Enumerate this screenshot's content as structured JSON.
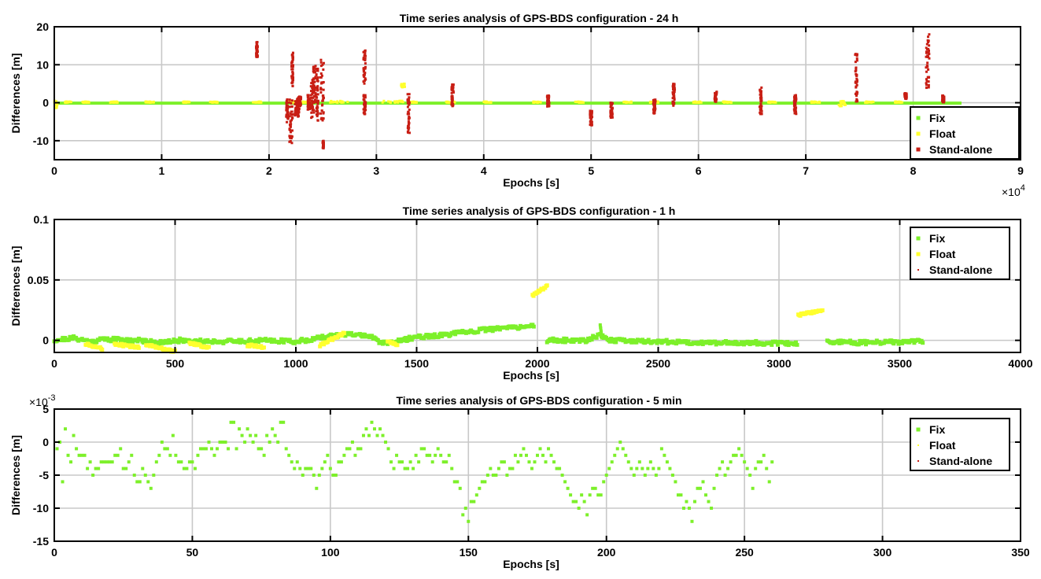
{
  "colors": {
    "fix": "#7df02a",
    "float": "#ffff2e",
    "standalone": "#c81e14",
    "grid": "#c8c8c8"
  },
  "chart_data": [
    {
      "type": "scatter",
      "title": "Time series analysis of GPS-BDS configuration - 24 h",
      "xlabel": "Epochs [s]",
      "ylabel": "Differences [m]",
      "xlim": [
        0,
        90000
      ],
      "ylim": [
        -15,
        20
      ],
      "xticks": [
        0,
        10000,
        20000,
        30000,
        40000,
        50000,
        60000,
        70000,
        80000,
        90000
      ],
      "xtick_labels": [
        "0",
        "1",
        "2",
        "3",
        "4",
        "5",
        "6",
        "7",
        "8",
        "9"
      ],
      "x_multiplier": [
        "×10",
        "4"
      ],
      "yticks": [
        -10,
        0,
        10,
        20
      ],
      "ytick_labels": [
        "-10",
        "0",
        "10",
        "20"
      ],
      "ytick_multiplier": null,
      "grid": true,
      "legend_position": "bottom-right",
      "series": [
        {
          "name": "Fix",
          "segments": [
            [
              0,
              84500,
              0,
              0.2
            ]
          ]
        },
        {
          "name": "Float",
          "segments": [
            [
              0,
              300,
              -1.5,
              0.5
            ],
            [
              900,
              1600,
              0,
              0.3
            ],
            [
              2600,
              3300,
              0,
              0.3
            ],
            [
              5200,
              5900,
              0,
              0.3
            ],
            [
              8500,
              9300,
              0,
              0.3
            ],
            [
              12000,
              12600,
              0,
              0.3
            ],
            [
              14500,
              15200,
              0,
              0.3
            ],
            [
              18500,
              19300,
              0,
              0.3
            ],
            [
              21800,
              22600,
              0,
              0.5
            ],
            [
              23100,
              23600,
              0,
              0.3
            ],
            [
              25600,
              27400,
              0,
              0.5
            ],
            [
              30500,
              32500,
              0,
              0.5
            ],
            [
              32300,
              32700,
              4,
              5
            ],
            [
              33000,
              33800,
              0,
              0.3
            ],
            [
              36500,
              37300,
              0,
              0.3
            ],
            [
              40000,
              40700,
              0,
              0.3
            ],
            [
              44600,
              45300,
              0,
              0.3
            ],
            [
              48500,
              49300,
              0,
              0.3
            ],
            [
              53000,
              53800,
              0,
              0.3
            ],
            [
              55500,
              56300,
              0,
              0.3
            ],
            [
              59500,
              60300,
              0,
              0.3
            ],
            [
              62300,
              63100,
              0,
              0.3
            ],
            [
              66500,
              67300,
              0,
              0.3
            ],
            [
              70500,
              71300,
              0,
              0.3
            ],
            [
              73000,
              73700,
              -1,
              0.5
            ],
            [
              75500,
              76300,
              0,
              0.3
            ],
            [
              78300,
              79000,
              0,
              0.3
            ]
          ]
        },
        {
          "name": "Stand-alone",
          "segments": [
            [
              18800,
              18950,
              12,
              16
            ],
            [
              21600,
              21800,
              -6,
              1
            ],
            [
              21900,
              22200,
              -11,
              1
            ],
            [
              22100,
              22250,
              4,
              14
            ],
            [
              22400,
              22800,
              -4,
              1
            ],
            [
              22600,
              23000,
              -2,
              2
            ],
            [
              23600,
              23800,
              -2,
              2
            ],
            [
              23900,
              24200,
              -4,
              6
            ],
            [
              24100,
              24400,
              0,
              10
            ],
            [
              24400,
              24600,
              -5,
              9
            ],
            [
              24800,
              25100,
              -5,
              12
            ],
            [
              25000,
              25100,
              -12,
              -10
            ],
            [
              28800,
              29000,
              5,
              14
            ],
            [
              28800,
              29000,
              -3,
              2
            ],
            [
              32900,
              33100,
              -8,
              3
            ],
            [
              37000,
              37200,
              -1,
              5
            ],
            [
              45900,
              46100,
              -1,
              2
            ],
            [
              49900,
              50100,
              -6,
              -2
            ],
            [
              51800,
              52000,
              -4,
              0
            ],
            [
              55800,
              56000,
              -3,
              1
            ],
            [
              57600,
              57800,
              -1,
              5
            ],
            [
              61500,
              61700,
              0,
              3
            ],
            [
              65700,
              65900,
              -3,
              4
            ],
            [
              68900,
              69100,
              -3,
              2
            ],
            [
              74600,
              74800,
              -1,
              13
            ],
            [
              79200,
              79400,
              1,
              2.5
            ],
            [
              81200,
              81500,
              3,
              18
            ],
            [
              82700,
              82900,
              0,
              2
            ]
          ]
        }
      ]
    },
    {
      "type": "scatter",
      "title": "Time series analysis of GPS-BDS configuration - 1 h",
      "xlabel": "Epochs [s]",
      "ylabel": "Differences [m]",
      "xlim": [
        0,
        4000
      ],
      "ylim": [
        -0.01,
        0.1
      ],
      "xticks": [
        0,
        500,
        1000,
        1500,
        2000,
        2500,
        3000,
        3500,
        4000
      ],
      "xtick_labels": [
        "0",
        "500",
        "1000",
        "1500",
        "2000",
        "2500",
        "3000",
        "3500",
        "4000"
      ],
      "x_multiplier": null,
      "yticks": [
        0,
        0.05,
        0.1
      ],
      "ytick_labels": [
        "0",
        "0.05",
        "0.1"
      ],
      "ytick_multiplier": null,
      "grid": true,
      "legend_position": "top-right",
      "series": [
        {
          "name": "Fix",
          "anchors": [
            [
              0,
              0
            ],
            [
              80,
              0.002
            ],
            [
              150,
              -0.001
            ],
            [
              200,
              0.001
            ],
            [
              350,
              0
            ],
            [
              450,
              -0.002
            ],
            [
              520,
              0
            ],
            [
              700,
              -0.001
            ],
            [
              900,
              0
            ],
            [
              1000,
              -0.001
            ],
            [
              1100,
              0.002
            ],
            [
              1200,
              0.005
            ],
            [
              1300,
              0.004
            ],
            [
              1350,
              -0.002
            ],
            [
              1420,
              -0.001
            ],
            [
              1500,
              0.003
            ],
            [
              1600,
              0.004
            ],
            [
              1750,
              0.008
            ],
            [
              1850,
              0.01
            ],
            [
              1990,
              0.012
            ],
            [
              2000,
              null
            ],
            [
              2040,
              0
            ],
            [
              2200,
              0
            ],
            [
              2260,
              0.005
            ],
            [
              2300,
              0
            ],
            [
              2500,
              -0.001
            ],
            [
              2700,
              -0.002
            ],
            [
              2900,
              -0.002
            ],
            [
              3080,
              -0.003
            ],
            [
              3100,
              null
            ],
            [
              3200,
              -0.001
            ],
            [
              3350,
              -0.002
            ],
            [
              3600,
              -0.001
            ]
          ],
          "spike": [
            2260,
            0.013
          ]
        },
        {
          "name": "Float",
          "clusters": [
            [
              130,
              200,
              -0.003,
              -0.007
            ],
            [
              250,
              350,
              -0.003,
              -0.006
            ],
            [
              380,
              500,
              -0.004,
              -0.009
            ],
            [
              560,
              640,
              -0.002,
              -0.006
            ],
            [
              800,
              870,
              -0.004,
              -0.006
            ],
            [
              1100,
              1200,
              -0.004,
              0.006
            ],
            [
              1380,
              1420,
              -0.001,
              -0.004
            ],
            [
              1980,
              2040,
              0.037,
              0.045
            ],
            [
              3080,
              3180,
              0.021,
              0.025
            ]
          ]
        },
        {
          "name": "Stand-alone",
          "clusters": []
        }
      ]
    },
    {
      "type": "scatter",
      "title": "Time series analysis of GPS-BDS configuration - 5 min",
      "xlabel": "Epochs [s]",
      "ylabel": "Differences [m]",
      "xlim": [
        0,
        350
      ],
      "ylim": [
        -15,
        5
      ],
      "xticks": [
        0,
        50,
        100,
        150,
        200,
        250,
        300,
        350
      ],
      "xtick_labels": [
        "0",
        "50",
        "100",
        "150",
        "200",
        "250",
        "300",
        "350"
      ],
      "x_multiplier": null,
      "yticks": [
        -15,
        -10,
        -5,
        0,
        5
      ],
      "ytick_labels": [
        "-15",
        "-10",
        "-5",
        "0",
        "5"
      ],
      "ytick_multiplier": [
        "×10",
        "-3"
      ],
      "grid": true,
      "legend_position": "top-right",
      "series": [
        {
          "name": "Fix",
          "values": [
            -1,
            0,
            -6,
            2,
            -2,
            -3,
            1,
            -1,
            -2,
            -2,
            -2,
            -4,
            -3,
            -5,
            -4,
            -4,
            -3,
            -3,
            -3,
            -3,
            -3,
            -2,
            -2,
            -1,
            -4,
            -4,
            -3,
            -2,
            -5,
            -6,
            -6,
            -4,
            -5,
            -6,
            -7,
            -5,
            -3,
            -2,
            0,
            -1,
            -1,
            -2,
            1,
            -2,
            -3,
            -3,
            -4,
            -4,
            -3,
            -3,
            -4,
            -2,
            -1,
            -1,
            -1,
            0,
            -1,
            -2,
            -1,
            0,
            0,
            0,
            -1,
            3,
            3,
            -1,
            2,
            1,
            0,
            2,
            1,
            0,
            1,
            -1,
            -1,
            -2,
            1,
            0,
            2,
            1,
            0,
            3,
            3,
            -1,
            -2,
            -3,
            -4,
            -3,
            -4,
            -5,
            -4,
            -4,
            -4,
            -5,
            -7,
            -5,
            -4,
            -3,
            -2,
            -4,
            -5,
            -5,
            -3,
            -3,
            -2,
            -1,
            -1,
            0,
            -2,
            -1,
            -1,
            1,
            2,
            1,
            3,
            2,
            1,
            2,
            1,
            0,
            -1,
            -3,
            -4,
            -2,
            -3,
            -3,
            -4,
            -4,
            -3,
            -4,
            -2,
            -3,
            -1,
            -1,
            -2,
            -2,
            -3,
            -2,
            -1,
            -2,
            -3,
            -3,
            -2,
            -4,
            -6,
            -6,
            -7,
            -11,
            -10,
            -12,
            -9,
            -9,
            -8,
            -7,
            -6,
            -6,
            -5,
            -4,
            -5,
            -5,
            -4,
            -3,
            -3,
            -5,
            -4,
            -4,
            -2,
            -3,
            -2,
            -1,
            -2,
            -3,
            -4,
            -3,
            -2,
            -1,
            -2,
            -3,
            -1,
            -2,
            -3,
            -4,
            -4,
            -5,
            -6,
            -7,
            -8,
            -9,
            -9,
            -10,
            -8,
            -9,
            -11,
            -8,
            -7,
            -7,
            -8,
            -8,
            -6,
            -5,
            -4,
            -3,
            -2,
            -1,
            0,
            -1,
            -2,
            -3,
            -4,
            -5,
            -4,
            -3,
            -4,
            -5,
            -4,
            -3,
            -4,
            -5,
            -4,
            -1,
            -2,
            -3,
            -4,
            -5,
            -6,
            -8,
            -8,
            -10,
            -9,
            -10,
            -12,
            -9,
            -7,
            -7,
            -6,
            -8,
            -9,
            -10,
            -7,
            -5,
            -4,
            -3,
            -5,
            -4,
            -3,
            -2,
            -2,
            -1,
            -2,
            -3,
            -4,
            -5,
            -7,
            -4,
            -3,
            -3,
            -2,
            -4,
            -6,
            -3
          ]
        },
        {
          "name": "Float",
          "values": []
        },
        {
          "name": "Stand-alone",
          "values": []
        }
      ]
    }
  ]
}
